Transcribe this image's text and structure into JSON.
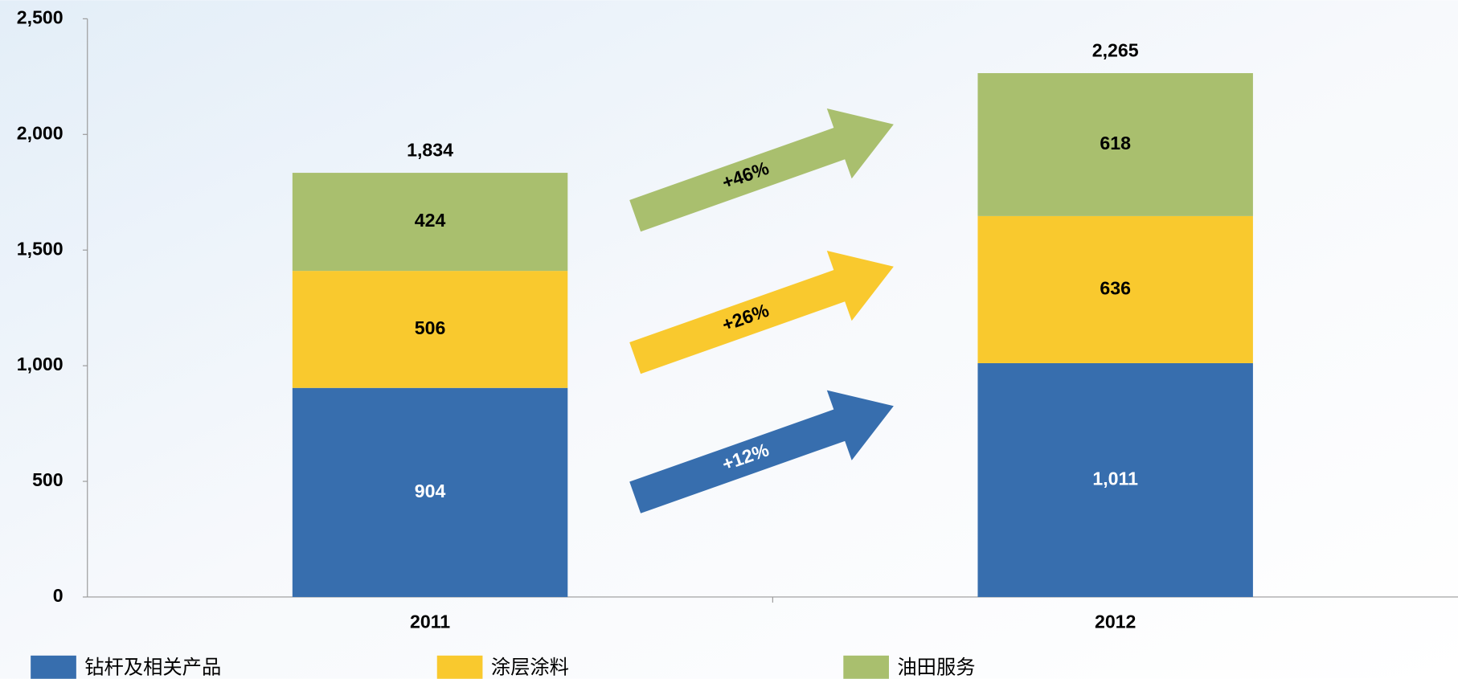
{
  "chart_data": {
    "type": "stacked_bar",
    "categories": [
      "2011",
      "2012"
    ],
    "series": [
      {
        "name": "钻杆及相关产品",
        "color": "#376eae",
        "values": [
          904,
          1011
        ],
        "value_labels": [
          "904",
          "1,011"
        ]
      },
      {
        "name": "涂层涂料",
        "color": "#f9c92e",
        "values": [
          506,
          636
        ]
      },
      {
        "name": "油田服务",
        "color": "#a9bf6e",
        "values": [
          424,
          618
        ]
      }
    ],
    "totals": {
      "values": [
        1834,
        2265
      ],
      "value_labels": [
        "1,834",
        "2,265"
      ]
    },
    "annotations": [
      "+12%",
      "+26%",
      "+46%"
    ],
    "ylim": [
      0,
      2500
    ],
    "yticks": [
      0,
      500,
      {
        "value": 1000,
        "label": "1,000"
      },
      {
        "value": 1500,
        "label": "1,500"
      },
      {
        "value": 2000,
        "label": "2,000"
      },
      {
        "value": 2500,
        "label": "2,500"
      }
    ]
  }
}
